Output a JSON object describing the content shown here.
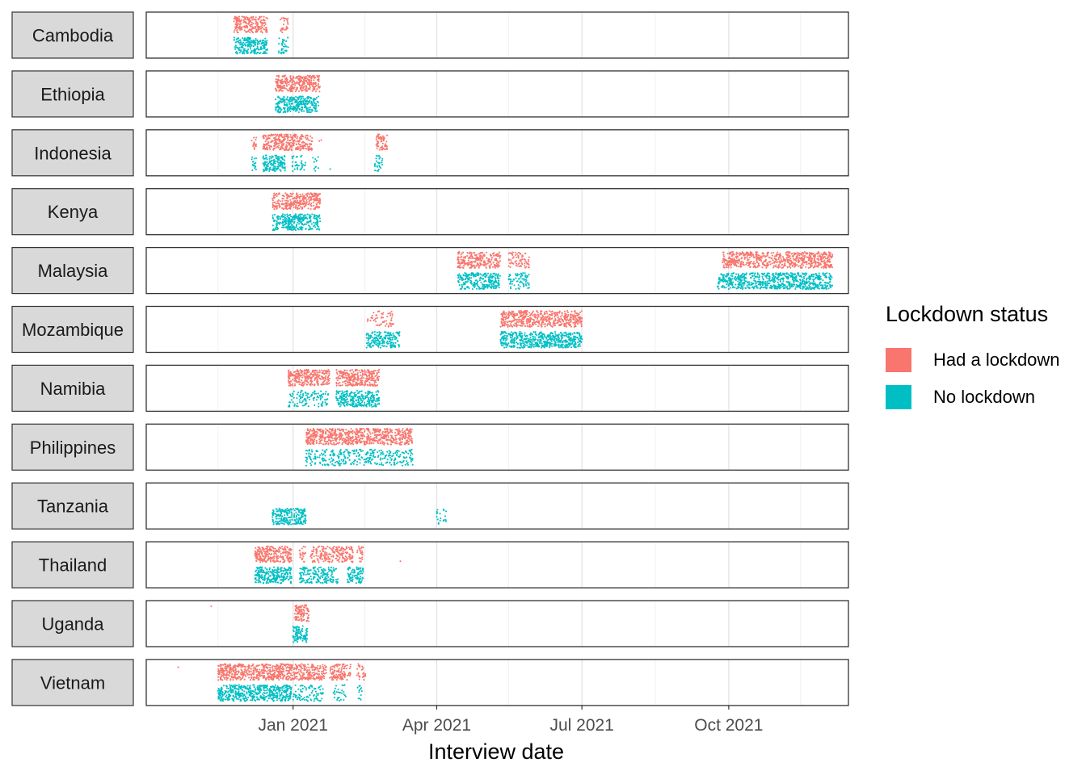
{
  "chart_data": {
    "type": "scatter",
    "title": "",
    "xlabel": "Interview date",
    "ylabel": "",
    "xlim": [
      "2020-10-01",
      "2021-12-15"
    ],
    "x_ticks": [
      {
        "date": "2021-01-01",
        "label": "Jan 2021"
      },
      {
        "date": "2021-04-01",
        "label": "Apr 2021"
      },
      {
        "date": "2021-07-01",
        "label": "Jul 2021"
      },
      {
        "date": "2021-10-01",
        "label": "Oct 2021"
      }
    ],
    "x_minor_gridlines": [
      "2020-11-15",
      "2021-02-15",
      "2021-05-16",
      "2021-08-16",
      "2021-11-15"
    ],
    "grid": true,
    "facet_by": "country",
    "legend": {
      "title": "Lockdown status",
      "position": "right",
      "entries": [
        {
          "label": "Had a lockdown",
          "color": "#F8766D"
        },
        {
          "label": "No lockdown",
          "color": "#00BFC4"
        }
      ]
    },
    "facets": [
      {
        "country": "Cambodia",
        "had_lockdown": [
          [
            "2020-11-25",
            "2020-12-16",
            0.9
          ],
          [
            "2020-12-24",
            "2020-12-29",
            0.5
          ]
        ],
        "no_lockdown": [
          [
            "2020-11-25",
            "2020-12-16",
            0.9
          ],
          [
            "2020-12-23",
            "2020-12-29",
            0.5
          ]
        ]
      },
      {
        "country": "Ethiopia",
        "had_lockdown": [
          [
            "2020-12-21",
            "2021-01-18",
            1
          ]
        ],
        "no_lockdown": [
          [
            "2020-12-21",
            "2021-01-17",
            1
          ]
        ]
      },
      {
        "country": "Indonesia",
        "had_lockdown": [
          [
            "2020-12-06",
            "2020-12-09",
            0.5
          ],
          [
            "2020-12-13",
            "2020-12-27",
            1
          ],
          [
            "2020-12-27",
            "2021-01-13",
            0.9
          ],
          [
            "2021-01-17",
            "2021-01-19",
            0.1
          ],
          [
            "2021-02-22",
            "2021-02-29",
            0.8
          ]
        ],
        "no_lockdown": [
          [
            "2020-12-06",
            "2020-12-09",
            0.5
          ],
          [
            "2020-12-13",
            "2020-12-27",
            1
          ],
          [
            "2020-12-31",
            "2021-01-09",
            0.35
          ],
          [
            "2021-01-13",
            "2021-01-17",
            0.25
          ],
          [
            "2021-01-24",
            "2021-01-25",
            0.05
          ],
          [
            "2021-02-21",
            "2021-02-26",
            0.5
          ]
        ]
      },
      {
        "country": "Kenya",
        "had_lockdown": [
          [
            "2020-12-19",
            "2020-12-24",
            0.8
          ],
          [
            "2020-12-25",
            "2021-01-18",
            1
          ]
        ],
        "no_lockdown": [
          [
            "2020-12-19",
            "2020-12-24",
            0.8
          ],
          [
            "2020-12-25",
            "2021-01-18",
            1
          ]
        ]
      },
      {
        "country": "Malaysia",
        "had_lockdown": [
          [
            "2021-04-14",
            "2021-05-11",
            0.85
          ],
          [
            "2021-05-16",
            "2021-05-29",
            0.5
          ],
          [
            "2021-09-27",
            "2021-12-05",
            0.9
          ]
        ],
        "no_lockdown": [
          [
            "2021-04-14",
            "2021-05-11",
            0.85
          ],
          [
            "2021-05-16",
            "2021-05-29",
            0.5
          ],
          [
            "2021-09-24",
            "2021-12-05",
            0.9
          ]
        ]
      },
      {
        "country": "Mozambique",
        "had_lockdown": [
          [
            "2021-02-16",
            "2021-03-05",
            0.3
          ],
          [
            "2021-05-11",
            "2021-07-01",
            0.9
          ]
        ],
        "no_lockdown": [
          [
            "2021-02-16",
            "2021-03-09",
            0.8
          ],
          [
            "2021-05-11",
            "2021-07-01",
            0.95
          ]
        ]
      },
      {
        "country": "Namibia",
        "had_lockdown": [
          [
            "2020-12-29",
            "2021-01-24",
            1
          ],
          [
            "2021-01-28",
            "2021-02-24",
            1
          ]
        ],
        "no_lockdown": [
          [
            "2020-12-29",
            "2021-01-23",
            0.4
          ],
          [
            "2021-01-28",
            "2021-02-24",
            0.9
          ]
        ]
      },
      {
        "country": "Philippines",
        "had_lockdown": [
          [
            "2021-01-09",
            "2021-03-17",
            1
          ]
        ],
        "no_lockdown": [
          [
            "2021-01-09",
            "2021-03-17",
            0.45
          ]
        ]
      },
      {
        "country": "Tanzania",
        "had_lockdown": [],
        "no_lockdown": [
          [
            "2020-12-19",
            "2021-01-09",
            1
          ],
          [
            "2021-04-01",
            "2021-04-07",
            0.3
          ]
        ]
      },
      {
        "country": "Thailand",
        "had_lockdown": [
          [
            "2020-12-08",
            "2020-12-31",
            1
          ],
          [
            "2021-01-05",
            "2021-01-09",
            0.5
          ],
          [
            "2021-01-12",
            "2021-02-08",
            0.7
          ],
          [
            "2021-02-10",
            "2021-02-14",
            0.5
          ],
          [
            "2021-03-09",
            "2021-03-10",
            0.05
          ]
        ],
        "no_lockdown": [
          [
            "2020-12-08",
            "2020-12-31",
            1
          ],
          [
            "2021-01-05",
            "2021-01-29",
            0.7
          ],
          [
            "2021-02-04",
            "2021-02-14",
            0.8
          ]
        ]
      },
      {
        "country": "Uganda",
        "had_lockdown": [
          [
            "2020-11-10",
            "2020-11-11",
            0.05
          ],
          [
            "2021-01-02",
            "2021-01-11",
            1
          ]
        ],
        "no_lockdown": [
          [
            "2021-01-01",
            "2021-01-10",
            1
          ]
        ]
      },
      {
        "country": "Vietnam",
        "had_lockdown": [
          [
            "2020-10-21",
            "2020-10-22",
            0.05
          ],
          [
            "2020-11-15",
            "2020-12-31",
            1
          ],
          [
            "2020-12-31",
            "2021-01-22",
            0.85
          ],
          [
            "2021-01-24",
            "2021-02-06",
            0.8
          ],
          [
            "2021-02-10",
            "2021-02-16",
            0.4
          ]
        ],
        "no_lockdown": [
          [
            "2020-11-15",
            "2020-12-31",
            1
          ],
          [
            "2021-01-01",
            "2021-01-20",
            0.4
          ],
          [
            "2021-01-26",
            "2021-02-04",
            0.3
          ],
          [
            "2021-02-10",
            "2021-02-14",
            0.3
          ]
        ]
      }
    ]
  }
}
